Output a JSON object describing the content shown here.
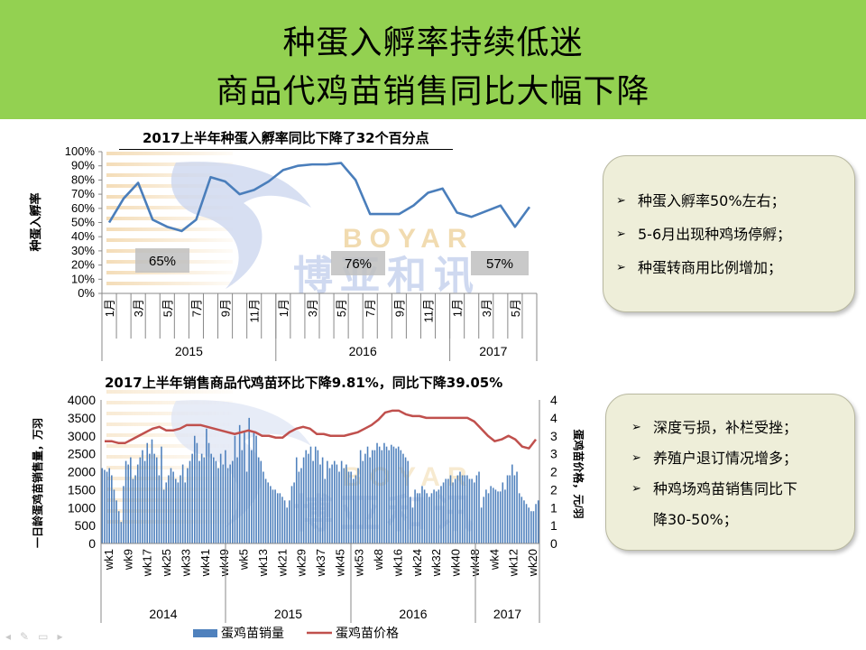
{
  "slide": {
    "title_line1": "种蛋入孵率持续低迷",
    "title_line2": "商品代鸡苗销售同比大幅下降",
    "watermark_brand": "BOYAR",
    "watermark_cn": "博亚和讯"
  },
  "notes_top": {
    "items": [
      "种蛋入孵率50%左右；",
      "5-6月出现种鸡场停孵；",
      "种蛋转商用比例增加；"
    ]
  },
  "notes_bottom": {
    "items": [
      "深度亏损，补栏受挫；",
      "养殖户退订情况增多；",
      "种鸡场鸡苗销售同比下",
      "降30-50%；"
    ]
  },
  "colors": {
    "header_bg": "#93d151",
    "line_blue": "#4a7ebb",
    "bar_blue": "#4f81bd",
    "price_red": "#c0504d"
  },
  "chart_data": [
    {
      "type": "line",
      "title": "2017上半年种蛋入孵率同比下降了32个百分点",
      "ylabel": "种蛋入孵率",
      "ylim": [
        0,
        100
      ],
      "y_ticks": [
        "100%",
        "90%",
        "80%",
        "70%",
        "60%",
        "50%",
        "40%",
        "30%",
        "20%",
        "10%",
        "0%"
      ],
      "x": [
        "1月",
        "2月",
        "3月",
        "4月",
        "5月",
        "6月",
        "7月",
        "8月",
        "9月",
        "10月",
        "11月",
        "12月",
        "1月",
        "2月",
        "3月",
        "4月",
        "5月",
        "6月",
        "7月",
        "8月",
        "9月",
        "10月",
        "11月",
        "12月",
        "1月",
        "2月",
        "3月",
        "4月",
        "5月",
        "6月"
      ],
      "x_tick_labels": [
        "1月",
        "3月",
        "5月",
        "7月",
        "9月",
        "11月",
        "1月",
        "3月",
        "5月",
        "7月",
        "9月",
        "11月",
        "1月",
        "3月",
        "5月"
      ],
      "years": [
        "2015",
        "2016",
        "2017"
      ],
      "series": [
        {
          "values": [
            50,
            67,
            78,
            52,
            47,
            44,
            52,
            82,
            79,
            70,
            73,
            79,
            87,
            90,
            91,
            91,
            92,
            80,
            56,
            56,
            56,
            62,
            71,
            74,
            57,
            54,
            58,
            62,
            47,
            61
          ]
        }
      ],
      "annotations": [
        "65%",
        "76%",
        "57%"
      ]
    },
    {
      "type": "bar",
      "title": "2017上半年销售商品代鸡苗环比下降9.81%，同比下降39.05%",
      "ylabel": "一日龄蛋鸡苗销售量，万羽",
      "y2label": "蛋鸡苗价格，元/羽",
      "ylim": [
        0,
        4000
      ],
      "y_ticks": [
        "4000",
        "3500",
        "3000",
        "2500",
        "2000",
        "1500",
        "1000",
        "500",
        "0"
      ],
      "y2_ticks": [
        "4",
        "4",
        "3",
        "3",
        "2",
        "2",
        "1",
        "1",
        "0"
      ],
      "x_tick_labels": [
        "wk1",
        "wk9",
        "wk17",
        "wk25",
        "wk33",
        "wk41",
        "wk49",
        "wk5",
        "wk13",
        "wk21",
        "wk29",
        "wk37",
        "wk45",
        "wk53",
        "wk8",
        "wk16",
        "wk24",
        "wk32",
        "wk40",
        "wk48",
        "wk4",
        "wk12",
        "wk20"
      ],
      "years": [
        "2014",
        "2015",
        "2016",
        "2017"
      ],
      "series": [
        {
          "name": "蛋鸡苗销量",
          "values": [
            2100,
            2050,
            2000,
            2100,
            1900,
            1500,
            1200,
            900,
            600,
            1600,
            2300,
            2200,
            2400,
            1800,
            1900,
            2200,
            2400,
            2600,
            2300,
            2800,
            2500,
            2900,
            2500,
            2400,
            1900,
            2700,
            1500,
            1700,
            1900,
            2100,
            2000,
            1800,
            1700,
            1900,
            2200,
            1700,
            2100,
            2300,
            2500,
            3000,
            2800,
            2300,
            2500,
            2400,
            3200,
            2800,
            2500,
            2400,
            2300,
            2100,
            2500,
            2200,
            2600,
            2100,
            2200,
            2300,
            3000,
            2400,
            3300,
            2600,
            3100,
            2000,
            3500,
            2600,
            3100,
            3000,
            2400,
            2300,
            2000,
            1800,
            1700,
            1600,
            1500,
            1500,
            1400,
            1400,
            1300,
            1200,
            1000,
            1200,
            1600,
            1700,
            2400,
            2000,
            2100,
            2400,
            2600,
            2500,
            2700,
            2300,
            2700,
            2600,
            2200,
            2400,
            1800,
            2300,
            2100,
            2200,
            2300,
            2200,
            2000,
            2300,
            2100,
            2200,
            2000,
            2000,
            1800,
            1900,
            2100,
            2600,
            2300,
            2500,
            2700,
            2400,
            2600,
            2600,
            2800,
            2700,
            2600,
            2800,
            2700,
            2600,
            2750,
            2700,
            2650,
            2700,
            2600,
            2500,
            2400,
            2300,
            1300,
            1000,
            1500,
            1400,
            1400,
            1600,
            1500,
            1400,
            1300,
            1400,
            1500,
            1450,
            1500,
            1600,
            1700,
            1800,
            1800,
            1900,
            1700,
            1800,
            1900,
            2000,
            1900,
            1900,
            1900,
            1800,
            1800,
            1700,
            1900,
            2000,
            1000,
            1300,
            1500,
            1400,
            1600,
            1550,
            1500,
            1450,
            1450,
            1700,
            1500,
            1900,
            1900,
            2200,
            1900,
            2000,
            1400,
            1300,
            1200,
            1100,
            1000,
            900,
            900,
            1100,
            1200
          ]
        },
        {
          "name": "蛋鸡苗价格",
          "values": [
            2.85,
            2.85,
            2.8,
            2.8,
            2.9,
            3.0,
            3.1,
            3.2,
            3.25,
            3.15,
            3.15,
            3.2,
            3.3,
            3.3,
            3.3,
            3.25,
            3.2,
            3.15,
            3.1,
            3.05,
            3.1,
            3.15,
            3.1,
            3.0,
            3.0,
            2.95,
            2.95,
            3.1,
            3.2,
            3.25,
            3.2,
            3.05,
            3.05,
            3.0,
            3.0,
            3.0,
            3.05,
            3.1,
            3.2,
            3.3,
            3.45,
            3.65,
            3.7,
            3.7,
            3.6,
            3.55,
            3.55,
            3.5,
            3.5,
            3.5,
            3.5,
            3.5,
            3.5,
            3.5,
            3.4,
            3.2,
            3.0,
            2.85,
            2.9,
            3.0,
            2.9,
            2.7,
            2.65,
            2.9
          ]
        }
      ]
    }
  ]
}
